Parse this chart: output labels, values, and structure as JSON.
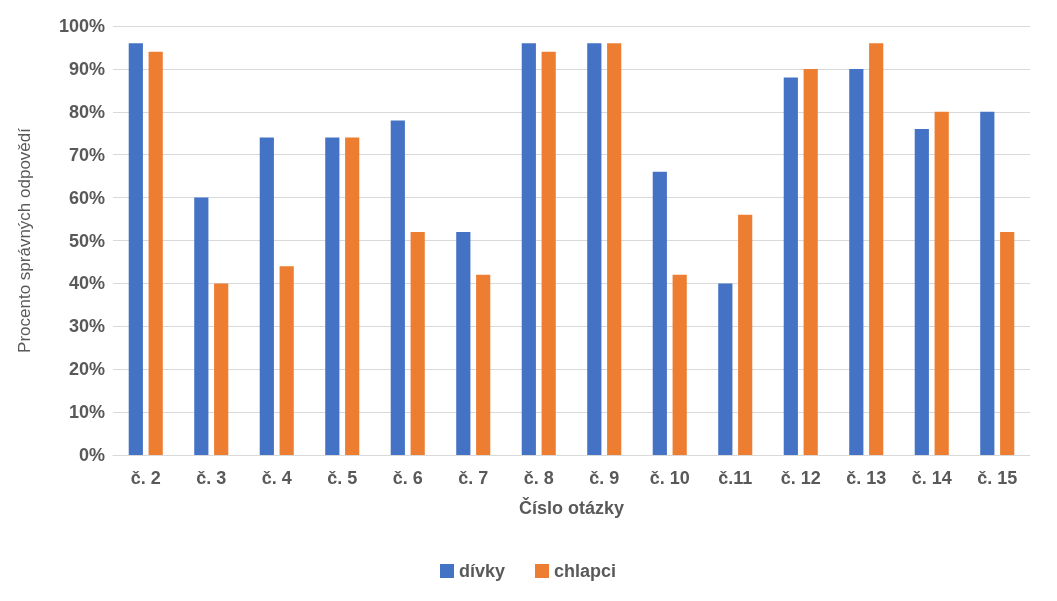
{
  "chart_data": {
    "type": "bar",
    "xlabel": "Číslo otázky",
    "ylabel": "Procento správných odpovědí",
    "categories": [
      "č. 2",
      "č. 3",
      "č. 4",
      "č. 5",
      "č. 6",
      "č. 7",
      "č. 8",
      "č. 9",
      "č. 10",
      "č.11",
      "č. 12",
      "č. 13",
      "č. 14",
      "č. 15"
    ],
    "series": [
      {
        "name": "dívky",
        "color": "#4472c4",
        "values": [
          96,
          60,
          74,
          74,
          78,
          52,
          96,
          96,
          66,
          40,
          88,
          90,
          76,
          80
        ]
      },
      {
        "name": "chlapci",
        "color": "#ed7d31",
        "values": [
          94,
          40,
          44,
          74,
          52,
          42,
          94,
          96,
          42,
          56,
          90,
          96,
          80,
          52
        ]
      }
    ],
    "ylim": [
      0,
      100
    ],
    "yticks": [
      {
        "value": 0,
        "label": "0%"
      },
      {
        "value": 10,
        "label": "10%"
      },
      {
        "value": 20,
        "label": "20%"
      },
      {
        "value": 30,
        "label": "30%"
      },
      {
        "value": 40,
        "label": "40%"
      },
      {
        "value": 50,
        "label": "50%"
      },
      {
        "value": 60,
        "label": "60%"
      },
      {
        "value": 70,
        "label": "70%"
      },
      {
        "value": 80,
        "label": "80%"
      },
      {
        "value": 90,
        "label": "90%"
      },
      {
        "value": 100,
        "label": "100%"
      }
    ],
    "grid": "y",
    "legend": "bottom"
  }
}
